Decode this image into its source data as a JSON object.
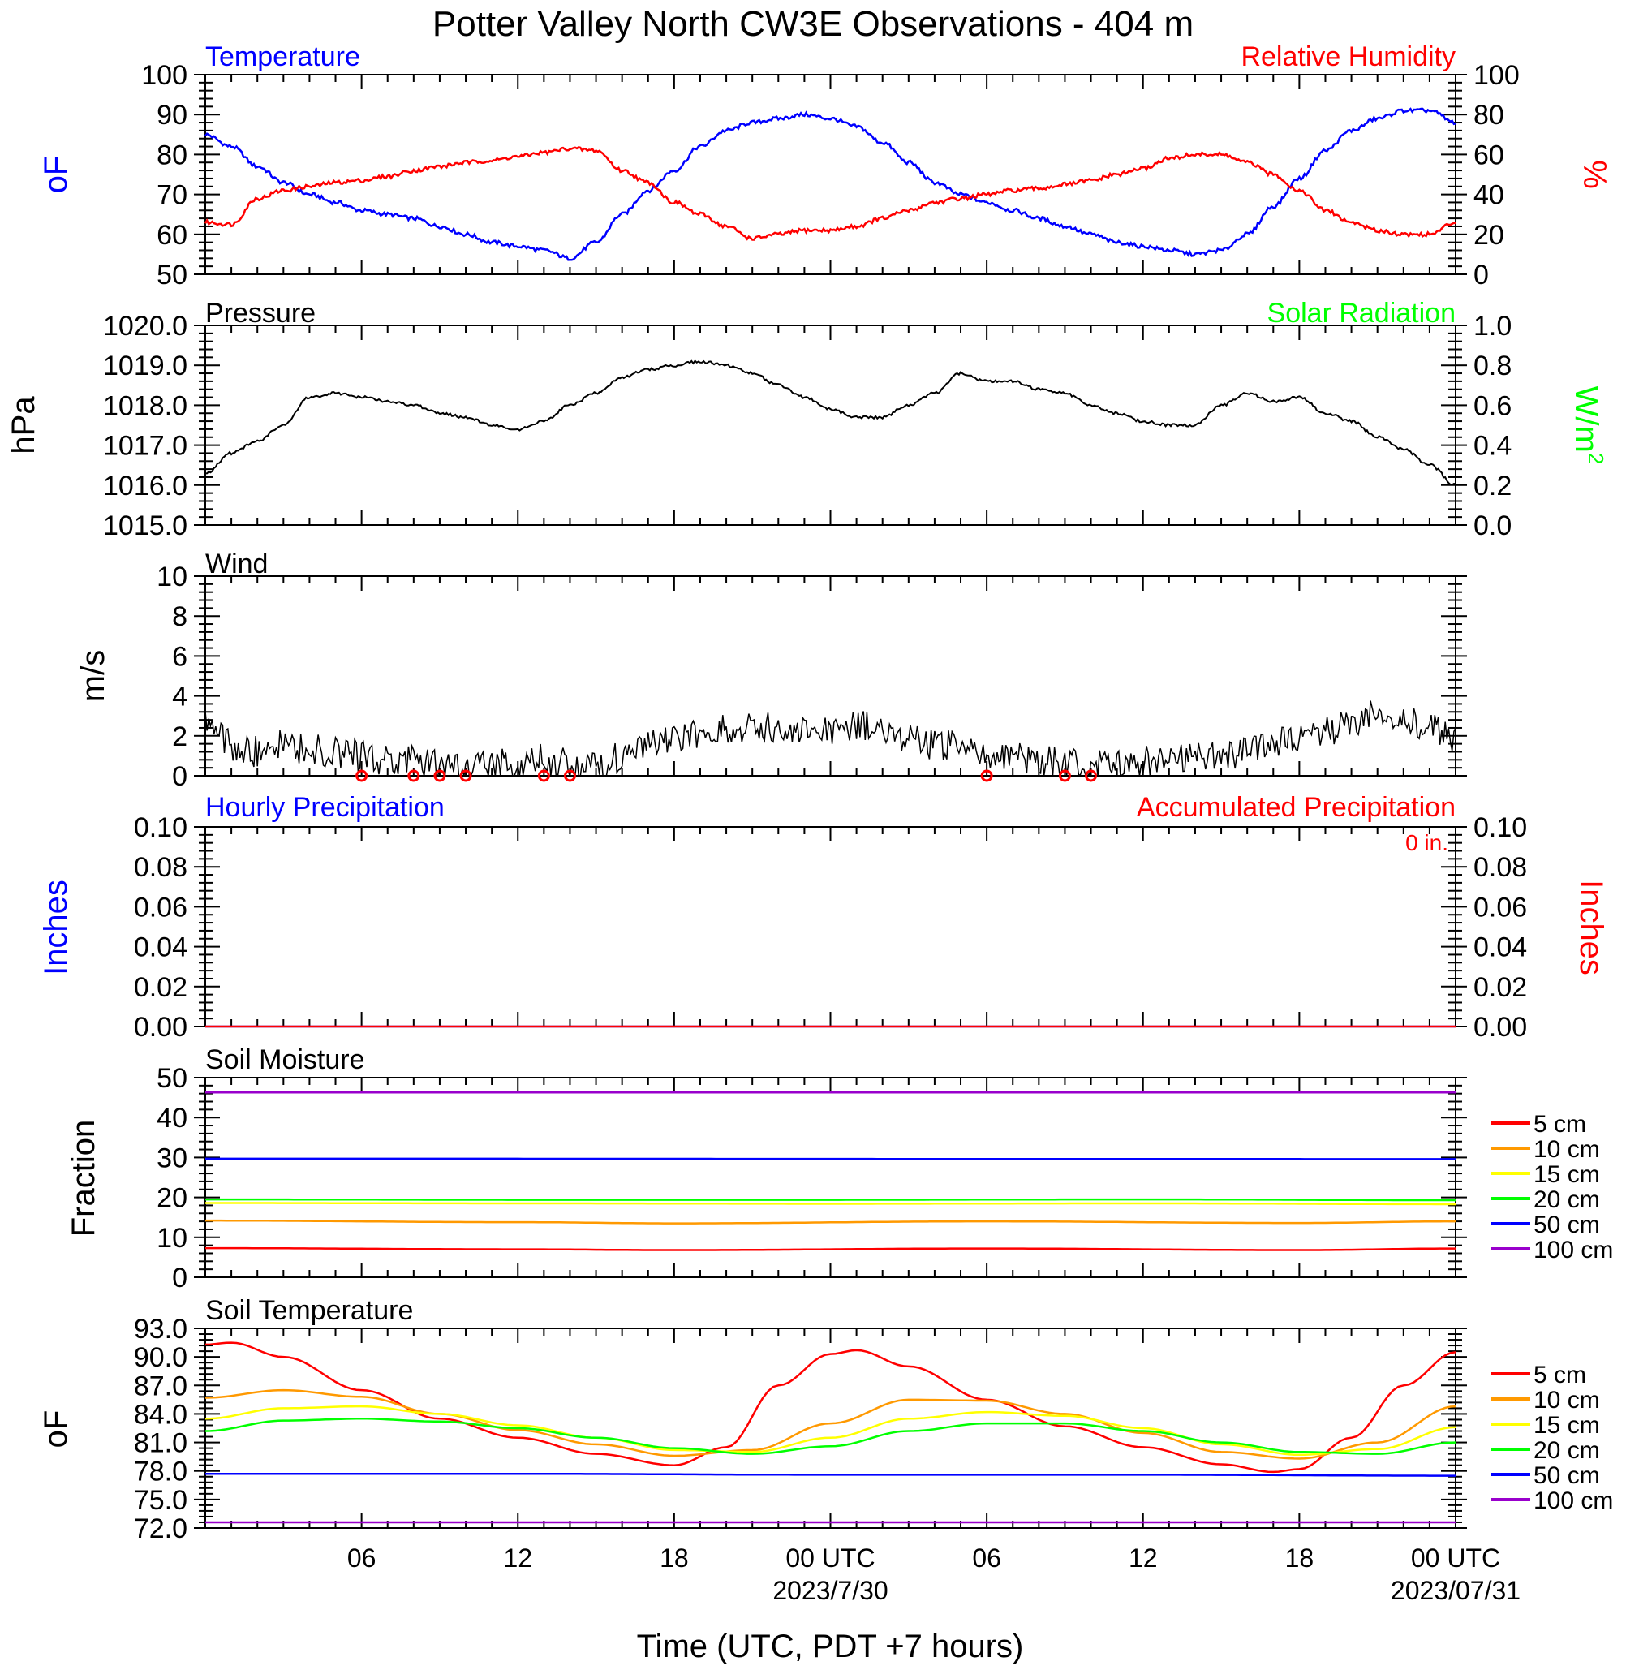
{
  "title": "Potter Valley North CW3E Observations - 404 m",
  "x_axis": {
    "label": "Time (UTC, PDT +7 hours)",
    "range_hours": [
      0,
      48
    ],
    "tick_hours": [
      6,
      12,
      18,
      24,
      30,
      36,
      42,
      48
    ],
    "tick_labels": [
      "06",
      "12",
      "18",
      "00 UTC",
      "06",
      "12",
      "18",
      "00 UTC"
    ],
    "date_labels": [
      {
        "hour": 24,
        "text": "2023/7/30"
      },
      {
        "hour": 48,
        "text": "2023/07/31"
      }
    ]
  },
  "colors": {
    "blue": "#0000ff",
    "red": "#ff0000",
    "green": "#00ff00",
    "orange": "#ff9900",
    "yellow": "#ffff00",
    "purple": "#9900cc",
    "black": "#000000"
  },
  "panels": {
    "temp_rh": {
      "left_title": "Temperature",
      "right_title": "Relative Humidity",
      "left_unit": "oF",
      "right_unit": "%",
      "left_ticks": [
        "50",
        "60",
        "70",
        "80",
        "90",
        "100"
      ],
      "right_ticks": [
        "0",
        "20",
        "40",
        "60",
        "80",
        "100"
      ]
    },
    "pressure": {
      "left_title": "Pressure",
      "right_title": "Solar Radiation",
      "left_unit": "hPa",
      "right_unit": "W/m",
      "right_unit_sup": "2",
      "left_ticks": [
        "1015.0",
        "1016.0",
        "1017.0",
        "1018.0",
        "1019.0",
        "1020.0"
      ],
      "right_ticks": [
        "0.0",
        "0.2",
        "0.4",
        "0.6",
        "0.8",
        "1.0"
      ]
    },
    "wind": {
      "left_title": "Wind",
      "left_unit": "m/s",
      "left_ticks": [
        "0",
        "2",
        "4",
        "6",
        "8",
        "10"
      ]
    },
    "precip": {
      "left_title": "Hourly Precipitation",
      "right_title": "Accumulated Precipitation",
      "total_label": "0 in.",
      "left_unit": "Inches",
      "right_unit": "Inches",
      "left_ticks": [
        "0.00",
        "0.02",
        "0.04",
        "0.06",
        "0.08",
        "0.10"
      ],
      "right_ticks": [
        "0.00",
        "0.02",
        "0.04",
        "0.06",
        "0.08",
        "0.10"
      ]
    },
    "soil_moisture": {
      "left_title": "Soil Moisture",
      "left_unit": "Fraction",
      "left_ticks": [
        "0",
        "10",
        "20",
        "30",
        "40",
        "50"
      ],
      "legend": [
        "5 cm",
        "10 cm",
        "15 cm",
        "20 cm",
        "50 cm",
        "100 cm"
      ]
    },
    "soil_temp": {
      "left_title": "Soil Temperature",
      "left_unit": "oF",
      "left_ticks": [
        "72.0",
        "75.0",
        "78.0",
        "81.0",
        "84.0",
        "87.0",
        "90.0",
        "93.0"
      ],
      "legend": [
        "5 cm",
        "10 cm",
        "15 cm",
        "20 cm",
        "50 cm",
        "100 cm"
      ]
    }
  },
  "chart_data": [
    {
      "panel": "temp_rh",
      "type": "line",
      "x_unit": "hours since 2023-07-29 00 UTC",
      "ylim_left": [
        50,
        100
      ],
      "ylim_right": [
        0,
        100
      ],
      "series": [
        {
          "name": "Temperature",
          "axis": "left",
          "color": "#0000ff",
          "x": [
            0,
            1,
            2,
            3,
            4,
            5,
            6,
            7,
            8,
            9,
            10,
            11,
            12,
            13,
            14,
            15,
            16,
            17,
            18,
            19,
            20,
            21,
            22,
            23,
            24,
            25,
            26,
            27,
            28,
            29,
            30,
            31,
            32,
            33,
            34,
            35,
            36,
            37,
            38,
            39,
            40,
            41,
            42,
            43,
            44,
            45,
            46,
            47,
            48
          ],
          "y": [
            85,
            82,
            77,
            73,
            70,
            68,
            66,
            65,
            64,
            62,
            60,
            58,
            57,
            56,
            54,
            58,
            65,
            71,
            76,
            82,
            86,
            88,
            89,
            90,
            89,
            87,
            83,
            78,
            73,
            70,
            68,
            66,
            64,
            62,
            60,
            58,
            57,
            56,
            55,
            56,
            60,
            67,
            74,
            81,
            86,
            89,
            91,
            91,
            88
          ]
        },
        {
          "name": "Relative Humidity",
          "axis": "right",
          "color": "#ff0000",
          "x": [
            0,
            1,
            2,
            3,
            4,
            5,
            6,
            7,
            8,
            9,
            10,
            11,
            12,
            13,
            14,
            15,
            16,
            17,
            18,
            19,
            20,
            21,
            22,
            23,
            24,
            25,
            26,
            27,
            28,
            29,
            30,
            31,
            32,
            33,
            34,
            35,
            36,
            37,
            38,
            39,
            40,
            41,
            42,
            43,
            44,
            45,
            46,
            47,
            48
          ],
          "y": [
            26,
            25,
            38,
            42,
            44,
            46,
            47,
            49,
            52,
            54,
            56,
            57,
            59,
            61,
            63,
            62,
            52,
            46,
            36,
            30,
            24,
            18,
            20,
            22,
            22,
            24,
            28,
            32,
            36,
            38,
            40,
            42,
            43,
            45,
            47,
            50,
            53,
            58,
            60,
            60,
            56,
            50,
            42,
            32,
            26,
            22,
            20,
            20,
            26
          ]
        }
      ]
    },
    {
      "panel": "pressure",
      "type": "line",
      "x_unit": "hours since 2023-07-29 00 UTC",
      "ylim_left": [
        1015.0,
        1020.0
      ],
      "ylim_right": [
        0.0,
        1.0
      ],
      "series": [
        {
          "name": "Pressure",
          "axis": "left",
          "color": "#000000",
          "x": [
            0,
            1,
            2,
            3,
            4,
            5,
            6,
            7,
            8,
            9,
            10,
            11,
            12,
            13,
            14,
            15,
            16,
            17,
            18,
            19,
            20,
            21,
            22,
            23,
            24,
            25,
            26,
            27,
            28,
            29,
            30,
            31,
            32,
            33,
            34,
            35,
            36,
            37,
            38,
            39,
            40,
            41,
            42,
            43,
            44,
            45,
            46,
            47,
            48
          ],
          "y": [
            1016.3,
            1016.8,
            1017.1,
            1017.5,
            1018.2,
            1018.3,
            1018.2,
            1018.1,
            1018.0,
            1017.8,
            1017.7,
            1017.5,
            1017.4,
            1017.6,
            1018.0,
            1018.3,
            1018.7,
            1018.9,
            1019.0,
            1019.1,
            1019.0,
            1018.8,
            1018.5,
            1018.2,
            1017.9,
            1017.7,
            1017.7,
            1018.0,
            1018.3,
            1018.8,
            1018.6,
            1018.6,
            1018.4,
            1018.3,
            1018.0,
            1017.8,
            1017.6,
            1017.5,
            1017.5,
            1018.0,
            1018.3,
            1018.1,
            1018.2,
            1017.8,
            1017.6,
            1017.2,
            1016.9,
            1016.5,
            1016.0
          ]
        }
      ]
    },
    {
      "panel": "wind",
      "type": "line",
      "x_unit": "hours since 2023-07-29 00 UTC",
      "ylim": [
        0,
        10
      ],
      "series": [
        {
          "name": "Wind",
          "color": "#000000",
          "x": [
            0,
            1,
            2,
            3,
            4,
            5,
            6,
            7,
            8,
            9,
            10,
            11,
            12,
            13,
            14,
            15,
            16,
            17,
            18,
            19,
            20,
            21,
            22,
            23,
            24,
            25,
            26,
            27,
            28,
            29,
            30,
            31,
            32,
            33,
            34,
            35,
            36,
            37,
            38,
            39,
            40,
            41,
            42,
            43,
            44,
            45,
            46,
            47,
            48
          ],
          "y": [
            2.8,
            1.5,
            1.2,
            1.5,
            1.3,
            1.2,
            1.0,
            0.8,
            0.7,
            0.5,
            0.4,
            0.6,
            0.6,
            0.8,
            0.6,
            0.5,
            1.0,
            1.5,
            1.8,
            2.2,
            2.4,
            2.5,
            2.3,
            2.2,
            2.2,
            2.5,
            2.2,
            1.8,
            1.6,
            1.5,
            1.2,
            1.0,
            0.8,
            0.7,
            0.6,
            0.6,
            0.7,
            0.8,
            0.9,
            1.0,
            1.2,
            1.6,
            2.0,
            2.2,
            2.8,
            3.0,
            2.8,
            2.4,
            2.0
          ]
        }
      ],
      "calm_hours": [
        6,
        8,
        9,
        10,
        13,
        14,
        30,
        33,
        34
      ]
    },
    {
      "panel": "precip",
      "type": "line",
      "x_unit": "hours since 2023-07-29 00 UTC",
      "ylim": [
        0.0,
        0.1
      ],
      "series": [
        {
          "name": "Hourly Precipitation",
          "color": "#0000ff",
          "x": [
            0,
            48
          ],
          "y": [
            0,
            0
          ]
        },
        {
          "name": "Accumulated Precipitation",
          "color": "#ff0000",
          "x": [
            0,
            48
          ],
          "y": [
            0,
            0
          ]
        }
      ]
    },
    {
      "panel": "soil_moisture",
      "type": "line",
      "x_unit": "hours since 2023-07-29 00 UTC",
      "ylim": [
        0,
        50
      ],
      "series": [
        {
          "name": "5 cm",
          "color": "#ff0000",
          "x": [
            0,
            12,
            18,
            30,
            42,
            48
          ],
          "y": [
            7.3,
            7.0,
            6.8,
            7.2,
            6.8,
            7.2
          ]
        },
        {
          "name": "10 cm",
          "color": "#ff9900",
          "x": [
            0,
            12,
            18,
            30,
            42,
            48
          ],
          "y": [
            14.2,
            13.8,
            13.5,
            14.0,
            13.6,
            14.0
          ]
        },
        {
          "name": "15 cm",
          "color": "#ffff00",
          "x": [
            0,
            12,
            24,
            36,
            48
          ],
          "y": [
            18.6,
            18.5,
            18.4,
            18.5,
            18.3
          ]
        },
        {
          "name": "20 cm",
          "color": "#00ff00",
          "x": [
            0,
            12,
            24,
            36,
            48
          ],
          "y": [
            19.5,
            19.4,
            19.4,
            19.5,
            19.3
          ]
        },
        {
          "name": "50 cm",
          "color": "#0000ff",
          "x": [
            0,
            48
          ],
          "y": [
            29.7,
            29.6
          ]
        },
        {
          "name": "100 cm",
          "color": "#9900cc",
          "x": [
            0,
            48
          ],
          "y": [
            46.3,
            46.3
          ]
        }
      ]
    },
    {
      "panel": "soil_temp",
      "type": "line",
      "x_unit": "hours since 2023-07-29 00 UTC",
      "ylim": [
        72.0,
        93.0
      ],
      "series": [
        {
          "name": "5 cm",
          "color": "#ff0000",
          "x": [
            0,
            1,
            3,
            6,
            9,
            12,
            15,
            18,
            20,
            22,
            24,
            25,
            27,
            30,
            33,
            36,
            39,
            41,
            42,
            44,
            46,
            48
          ],
          "y": [
            91.3,
            91.5,
            90.0,
            86.5,
            83.5,
            81.5,
            79.8,
            78.6,
            80.5,
            87.0,
            90.3,
            90.7,
            89.0,
            85.5,
            82.7,
            80.5,
            78.7,
            77.9,
            78.2,
            81.5,
            87.0,
            90.5
          ]
        },
        {
          "name": "10 cm",
          "color": "#ff9900",
          "x": [
            0,
            3,
            6,
            9,
            12,
            15,
            18,
            21,
            24,
            27,
            30,
            33,
            36,
            39,
            42,
            45,
            48
          ],
          "y": [
            85.7,
            86.5,
            85.8,
            84.0,
            82.3,
            80.8,
            79.6,
            80.2,
            83.0,
            85.5,
            85.4,
            84.0,
            82.0,
            80.0,
            79.3,
            81.0,
            84.8
          ]
        },
        {
          "name": "15 cm",
          "color": "#ffff00",
          "x": [
            0,
            3,
            6,
            9,
            12,
            15,
            18,
            21,
            24,
            27,
            30,
            33,
            36,
            39,
            42,
            45,
            48
          ],
          "y": [
            83.5,
            84.6,
            84.8,
            84.0,
            82.8,
            81.5,
            80.2,
            80.0,
            81.5,
            83.5,
            84.2,
            83.8,
            82.5,
            80.8,
            79.7,
            80.3,
            82.6
          ]
        },
        {
          "name": "20 cm",
          "color": "#00ff00",
          "x": [
            0,
            3,
            6,
            9,
            12,
            15,
            18,
            21,
            24,
            27,
            30,
            33,
            36,
            39,
            42,
            45,
            48
          ],
          "y": [
            82.2,
            83.3,
            83.5,
            83.2,
            82.5,
            81.5,
            80.4,
            79.8,
            80.6,
            82.2,
            83.0,
            83.0,
            82.2,
            81.0,
            80.0,
            79.8,
            81.0
          ]
        },
        {
          "name": "50 cm",
          "color": "#0000ff",
          "x": [
            0,
            12,
            24,
            36,
            48
          ],
          "y": [
            77.7,
            77.7,
            77.6,
            77.6,
            77.5
          ]
        },
        {
          "name": "100 cm",
          "color": "#9900cc",
          "x": [
            0,
            48
          ],
          "y": [
            72.6,
            72.6
          ]
        }
      ]
    }
  ]
}
